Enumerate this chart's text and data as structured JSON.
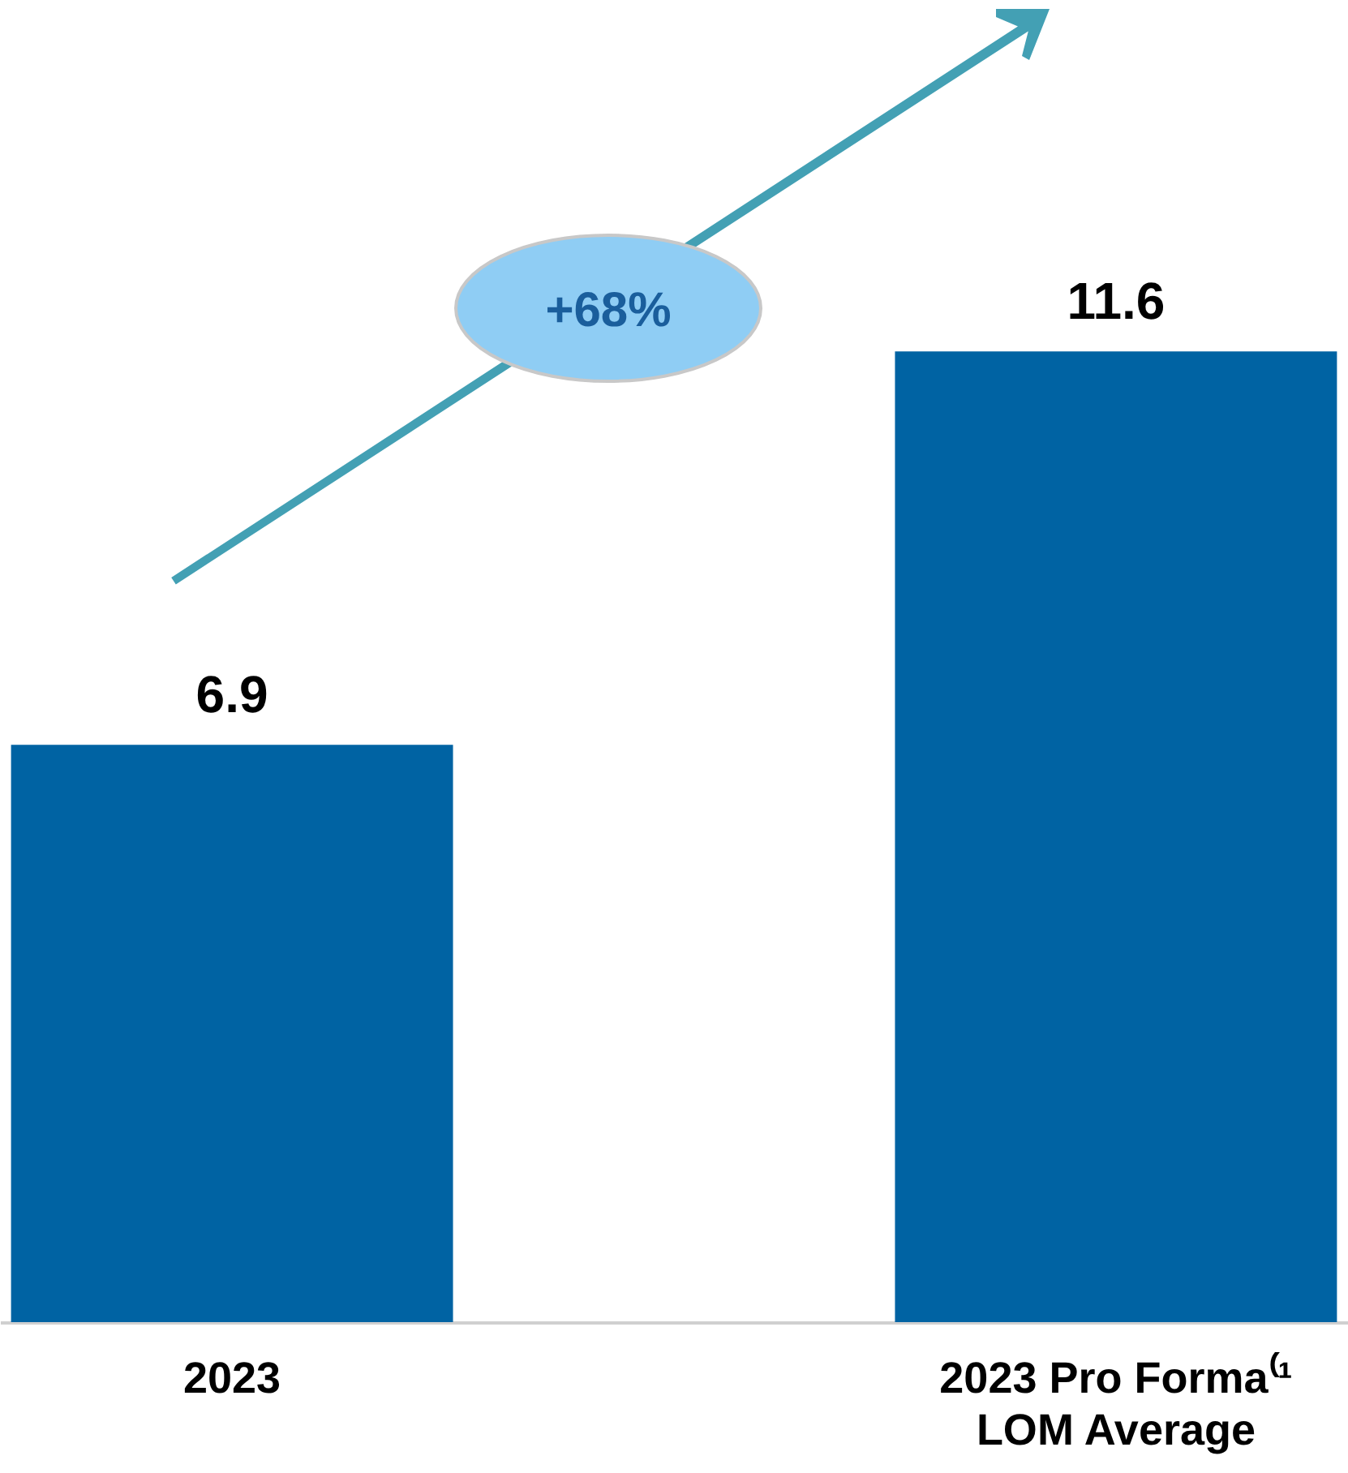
{
  "chart_data": {
    "type": "bar",
    "categories": [
      "2023",
      "2023 Pro Forma⁽¹\nLOM Average"
    ],
    "values": [
      6.9,
      11.6
    ],
    "color": "#0063a3",
    "data_labels": true,
    "grid": false,
    "annotations": [
      "+68%"
    ]
  }
}
